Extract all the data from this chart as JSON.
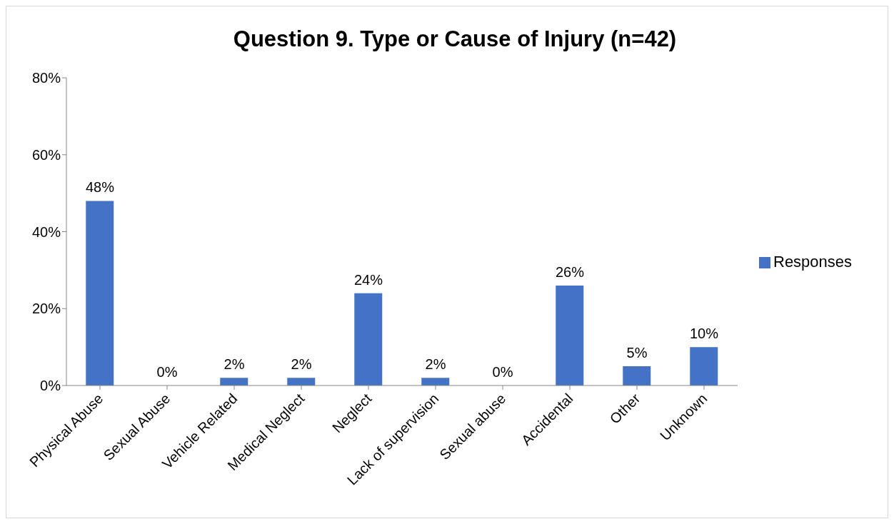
{
  "chart_data": {
    "type": "bar",
    "title": "Question 9. Type or Cause of Injury (n=42)",
    "categories": [
      "Physical Abuse",
      "Sexual Abuse",
      "Vehicle Related",
      "Medical Neglect",
      "Neglect",
      "Lack of supervision",
      "Sexual abuse",
      "Accidental",
      "Other",
      "Unknown"
    ],
    "series": [
      {
        "name": "Responses",
        "color": "#4472c4",
        "values": [
          48,
          0,
          2,
          2,
          24,
          2,
          0,
          26,
          5,
          10
        ],
        "value_labels": [
          "48%",
          "0%",
          "2%",
          "2%",
          "24%",
          "2%",
          "0%",
          "26%",
          "5%",
          "10%"
        ]
      }
    ],
    "ylim": [
      0,
      80
    ],
    "yticks": [
      {
        "value": 0,
        "label": "0%"
      },
      {
        "value": 20,
        "label": "20%"
      },
      {
        "value": 40,
        "label": "40%"
      },
      {
        "value": 60,
        "label": "60%"
      },
      {
        "value": 80,
        "label": "80%"
      }
    ],
    "grid": false,
    "legend": "right"
  }
}
